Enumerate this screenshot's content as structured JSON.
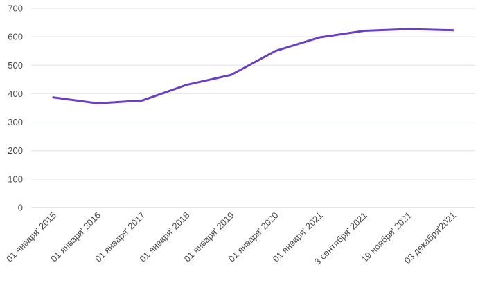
{
  "chart_data": {
    "type": "line",
    "title": "",
    "xlabel": "",
    "ylabel": "",
    "ylim": [
      0,
      700
    ],
    "yticks": [
      0,
      100,
      200,
      300,
      400,
      500,
      600,
      700
    ],
    "grid": true,
    "legend": "none",
    "line_color": "#6a3fc4",
    "categories": [
      "01 января' 2015",
      "01 января' 2016",
      "01 января' 2017",
      "01 января' 2018",
      "01 января' 2019",
      "01 января' 2020",
      "01 января' 2021",
      "3  сентября' 2021",
      "19 ноября' 2021",
      "03 декабря'2021"
    ],
    "series": [
      {
        "values": [
          387,
          366,
          376,
          431,
          466,
          550,
          598,
          621,
          627,
          623
        ]
      }
    ]
  }
}
